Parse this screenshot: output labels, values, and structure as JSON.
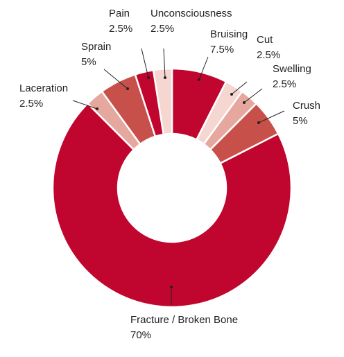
{
  "chart_data": {
    "type": "donut",
    "categories": [
      "Bruising",
      "Cut",
      "Swelling",
      "Crush",
      "Fracture / Broken Bone",
      "Laceration",
      "Sprain",
      "Pain",
      "Unconsciousness"
    ],
    "values": [
      7.5,
      2.5,
      2.5,
      5,
      70,
      2.5,
      5,
      2.5,
      2.5
    ],
    "value_labels": [
      "7.5%",
      "2.5%",
      "2.5%",
      "5%",
      "70%",
      "2.5%",
      "5%",
      "2.5%",
      "2.5%"
    ],
    "colors": [
      "#c0062e",
      "#f6d6d0",
      "#e6a89e",
      "#c8504a",
      "#c0062e",
      "#e6a89e",
      "#c8504a",
      "#c0062e",
      "#f6d6d0"
    ]
  }
}
